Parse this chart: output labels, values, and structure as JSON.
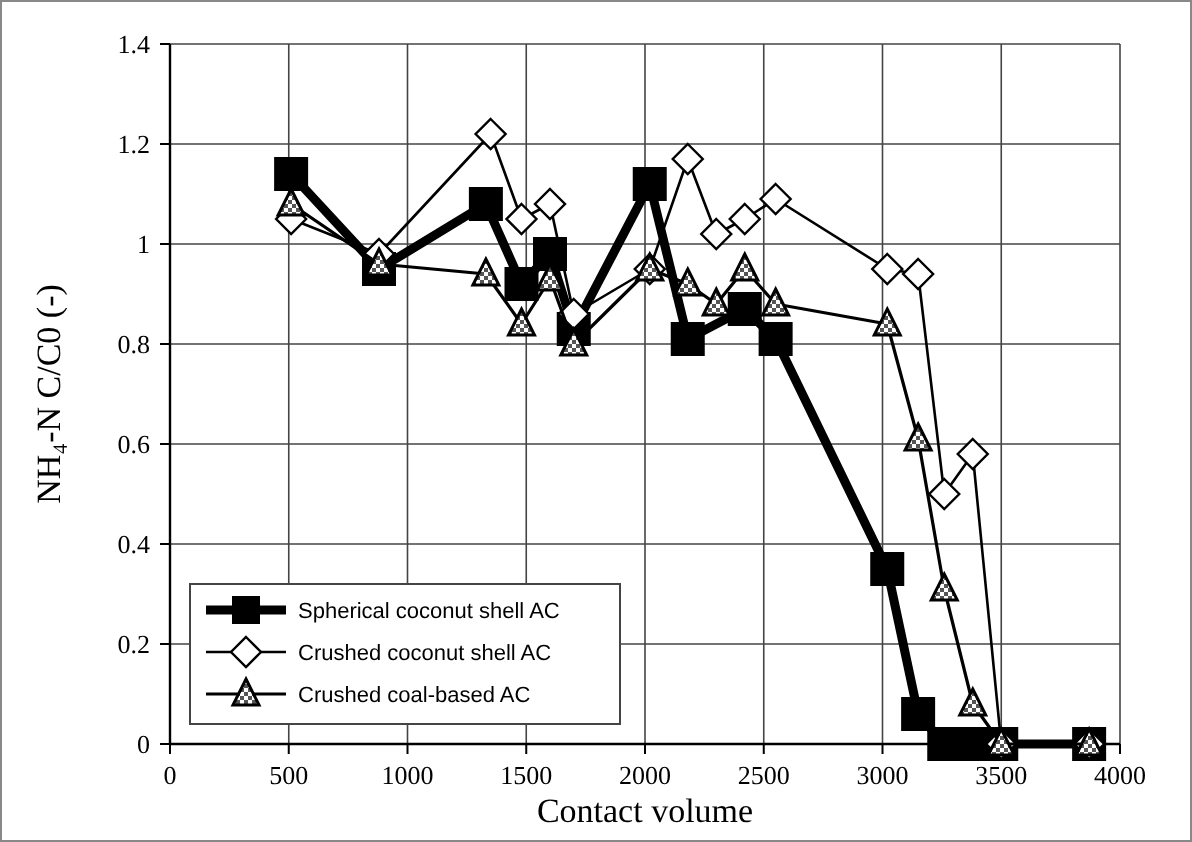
{
  "chart_data": {
    "type": "line",
    "xlabel": "Contact volume",
    "ylabel": "NH₄-N C/C0 (-)",
    "xlim": [
      0,
      4000
    ],
    "xticks": [
      0,
      500,
      1000,
      1500,
      2000,
      2500,
      3000,
      3500,
      4000
    ],
    "ylim": [
      0,
      1.4
    ],
    "yticks": [
      0,
      0.2,
      0.4,
      0.6,
      0.8,
      1,
      1.2,
      1.4
    ],
    "grid": true,
    "legend": "bottom left",
    "series": [
      {
        "name": "Spherical coconut shell AC",
        "color": "#000000",
        "marker": "square",
        "x": [
          510,
          880,
          1330,
          1480,
          1600,
          1700,
          2020,
          2180,
          2420,
          2550,
          3020,
          3150,
          3260,
          3380,
          3500,
          3870
        ],
        "values": [
          1.14,
          0.95,
          1.08,
          0.92,
          0.98,
          0.83,
          1.12,
          0.81,
          0.87,
          0.81,
          0.35,
          0.06,
          0,
          0,
          0,
          0
        ]
      },
      {
        "name": "Crushed coconut shell AC",
        "color": "#000000",
        "marker": "diamond",
        "x": [
          510,
          880,
          1350,
          1480,
          1600,
          1700,
          2020,
          2180,
          2300,
          2420,
          2550,
          3020,
          3150,
          3260,
          3380,
          3500,
          3870
        ],
        "values": [
          1.05,
          0.98,
          1.22,
          1.05,
          1.08,
          0.86,
          0.95,
          1.17,
          1.02,
          1.05,
          1.09,
          0.95,
          0.94,
          0.5,
          0.58,
          0,
          0
        ]
      },
      {
        "name": "Crushed coal-based AC",
        "color": "#000000",
        "marker": "triangle",
        "x": [
          510,
          880,
          1330,
          1480,
          1600,
          1700,
          2020,
          2180,
          2300,
          2420,
          2550,
          3020,
          3150,
          3260,
          3380,
          3500,
          3870
        ],
        "values": [
          1.08,
          0.96,
          0.94,
          0.84,
          0.93,
          0.8,
          0.95,
          0.92,
          0.88,
          0.95,
          0.88,
          0.84,
          0.61,
          0.31,
          0.08,
          0,
          0
        ]
      }
    ]
  }
}
